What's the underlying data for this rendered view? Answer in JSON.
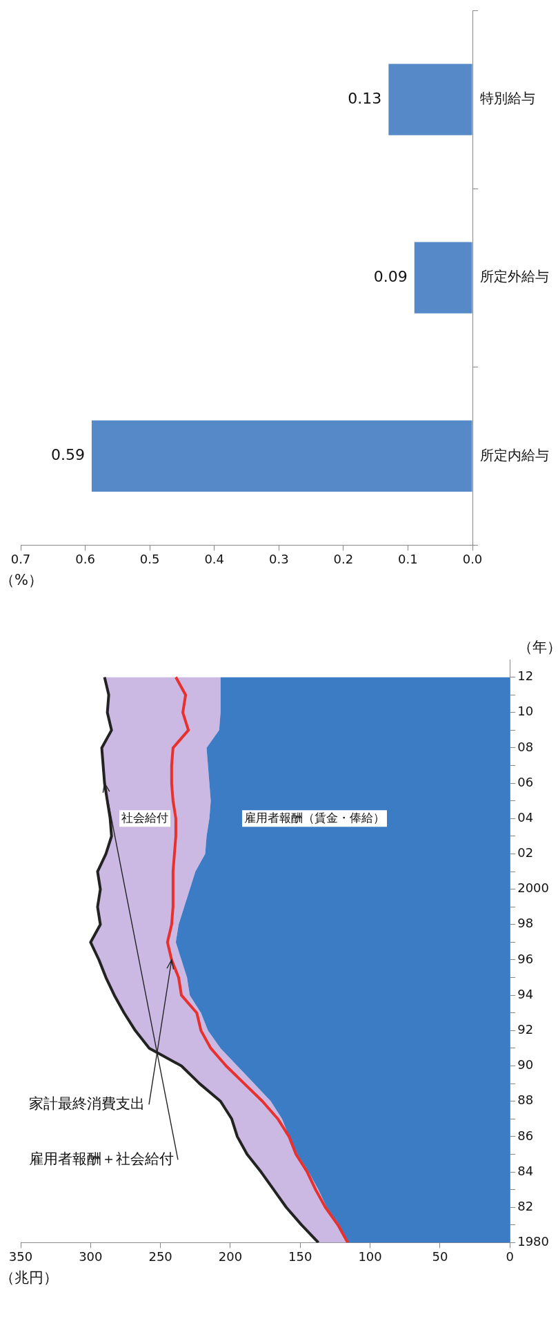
{
  "chart_data": [
    {
      "type": "bar",
      "orientation": "horizontal",
      "categories": [
        "特別給与",
        "所定外給与",
        "所定内給与"
      ],
      "values": [
        0.13,
        0.09,
        0.59
      ],
      "color": "#5589c7",
      "xlim": [
        0.7,
        0
      ],
      "xticks": [
        {
          "value": 0,
          "label": "0.0"
        },
        {
          "value": 0.1,
          "label": "0.1"
        },
        {
          "value": 0.2,
          "label": "0.2"
        },
        {
          "value": 0.3,
          "label": "0.3"
        },
        {
          "value": 0.4,
          "label": "0.4"
        },
        {
          "value": 0.5,
          "label": "0.5"
        },
        {
          "value": 0.6,
          "label": "0.6"
        },
        {
          "value": 0.7,
          "label": "0.7"
        }
      ],
      "xlabel": "（%）",
      "data_labels": true,
      "grid": false
    },
    {
      "type": "area",
      "orientation": "horizontal",
      "stacked": true,
      "x": [
        1980,
        1981,
        1982,
        1983,
        1984,
        1985,
        1986,
        1987,
        1988,
        1989,
        1990,
        1991,
        1992,
        1993,
        1994,
        1995,
        1996,
        1997,
        1998,
        1999,
        2000,
        2001,
        2002,
        2003,
        2004,
        2005,
        2006,
        2007,
        2008,
        2009,
        2010,
        2011,
        2012
      ],
      "series": [
        {
          "name": "雇用者報酬（賃金・俸給）",
          "type": "area",
          "color": "#3b7cc4",
          "values": [
            116,
            122,
            131,
            137,
            144,
            152,
            158,
            163,
            171,
            183,
            195,
            207,
            216,
            221,
            229,
            231,
            235,
            239,
            237,
            233,
            229,
            225,
            218,
            217,
            215,
            214,
            215,
            216,
            217,
            208,
            207,
            207,
            207
          ]
        },
        {
          "name": "社会給付",
          "type": "area",
          "color": "#cbb8e3",
          "values": [
            21,
            27,
            29,
            32,
            34,
            36,
            37,
            36,
            36,
            39,
            40,
            51,
            52,
            55,
            54,
            58,
            59,
            61,
            56,
            62,
            64,
            70,
            71,
            68,
            71,
            74,
            75,
            75,
            75,
            77,
            81,
            80,
            83
          ]
        },
        {
          "type": "line",
          "color": "#e8302c",
          "values": [
            116,
            123,
            132,
            139,
            145,
            153,
            158,
            166,
            177,
            190,
            203,
            214,
            221,
            224,
            235,
            237,
            242,
            245,
            242,
            241,
            241,
            241,
            240,
            239,
            239,
            241,
            242,
            242,
            241,
            230,
            234,
            232,
            239
          ]
        }
      ],
      "ylim": [
        1980,
        2013
      ],
      "yticks": [
        {
          "value": 1980,
          "label": "1980"
        },
        {
          "value": 1981,
          "label": null
        },
        {
          "value": 1982,
          "label": "82"
        },
        {
          "value": 1983,
          "label": null
        },
        {
          "value": 1984,
          "label": "84"
        },
        {
          "value": 1985,
          "label": null
        },
        {
          "value": 1986,
          "label": "86"
        },
        {
          "value": 1987,
          "label": null
        },
        {
          "value": 1988,
          "label": "88"
        },
        {
          "value": 1989,
          "label": null
        },
        {
          "value": 1990,
          "label": "90"
        },
        {
          "value": 1991,
          "label": null
        },
        {
          "value": 1992,
          "label": "92"
        },
        {
          "value": 1993,
          "label": null
        },
        {
          "value": 1994,
          "label": "94"
        },
        {
          "value": 1995,
          "label": null
        },
        {
          "value": 1996,
          "label": "96"
        },
        {
          "value": 1997,
          "label": null
        },
        {
          "value": 1998,
          "label": "98"
        },
        {
          "value": 1999,
          "label": null
        },
        {
          "value": 2000,
          "label": "2000"
        },
        {
          "value": 2001,
          "label": null
        },
        {
          "value": 2002,
          "label": "02"
        },
        {
          "value": 2003,
          "label": null
        },
        {
          "value": 2004,
          "label": "04"
        },
        {
          "value": 2005,
          "label": null
        },
        {
          "value": 2006,
          "label": "06"
        },
        {
          "value": 2007,
          "label": null
        },
        {
          "value": 2008,
          "label": "08"
        },
        {
          "value": 2009,
          "label": null
        },
        {
          "value": 2010,
          "label": "10"
        },
        {
          "value": 2011,
          "label": null
        },
        {
          "value": 2012,
          "label": "12"
        }
      ],
      "xlim": [
        350,
        0
      ],
      "xticks": [
        0,
        50,
        100,
        150,
        200,
        250,
        300,
        350
      ],
      "xlabel": "（兆円）",
      "ylabel": "（年）",
      "grid": false,
      "marker": "none",
      "annotations": [
        {
          "text": "雇用者報酬＋社会給付",
          "x": 290,
          "y": 2006
        },
        {
          "text": "家計最終消費支出",
          "x": 242,
          "y": 1996
        }
      ]
    }
  ]
}
